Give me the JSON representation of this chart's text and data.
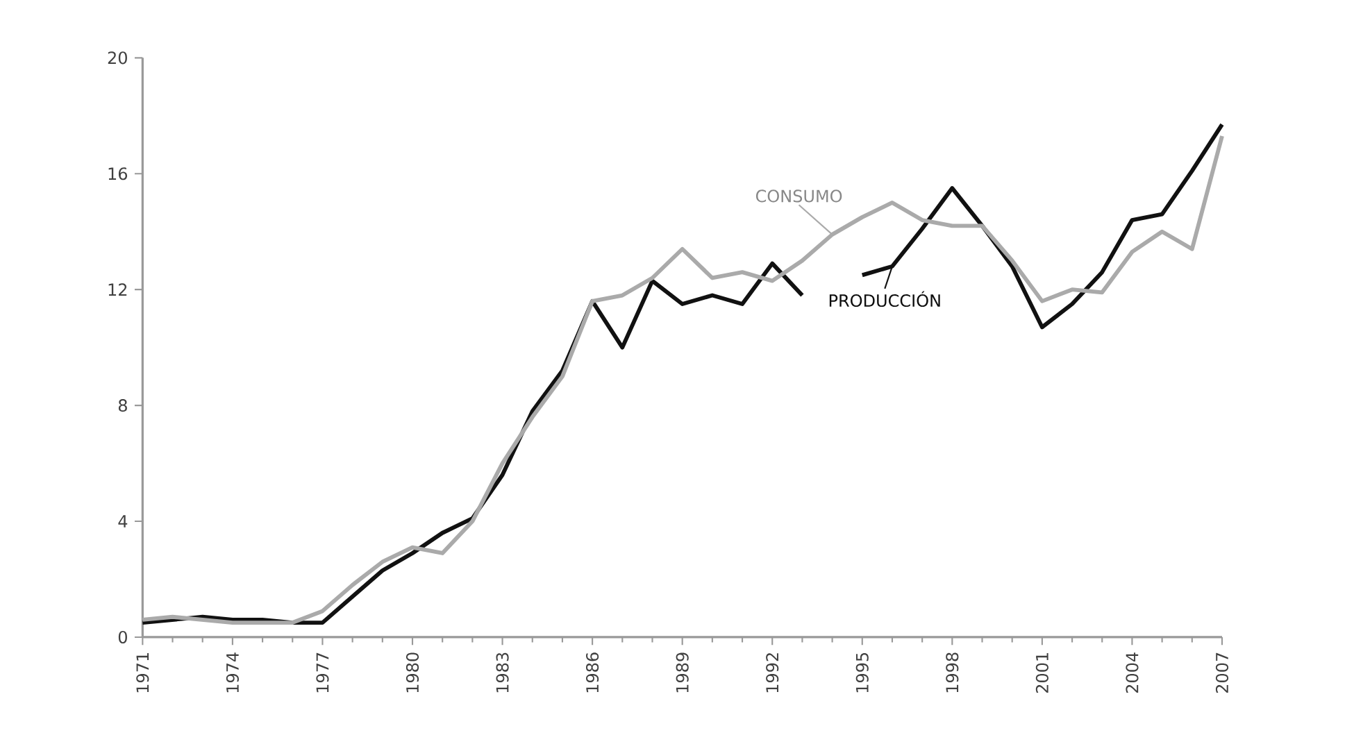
{
  "chart_data": {
    "type": "line",
    "x": [
      1971,
      1972,
      1973,
      1974,
      1975,
      1976,
      1977,
      1978,
      1979,
      1980,
      1981,
      1982,
      1983,
      1984,
      1985,
      1986,
      1987,
      1988,
      1989,
      1990,
      1991,
      1992,
      1993,
      1994,
      1995,
      1996,
      1997,
      1998,
      1999,
      2000,
      2001,
      2002,
      2003,
      2004,
      2005,
      2006,
      2007
    ],
    "series": [
      {
        "name": "PRODUCCIÓN",
        "color": "#111111",
        "values": [
          0.5,
          0.6,
          0.7,
          0.6,
          0.6,
          0.5,
          0.5,
          1.4,
          2.3,
          2.9,
          3.6,
          4.1,
          5.6,
          7.8,
          9.2,
          11.6,
          10.0,
          12.3,
          11.5,
          11.8,
          11.5,
          12.9,
          11.8,
          null,
          12.5,
          12.8,
          14.1,
          15.5,
          14.2,
          12.8,
          10.7,
          11.5,
          12.6,
          14.4,
          14.6,
          16.1,
          17.7
        ]
      },
      {
        "name": "CONSUMO",
        "color": "#aaaaaa",
        "values": [
          0.6,
          0.7,
          0.6,
          0.5,
          0.5,
          0.5,
          0.9,
          1.8,
          2.6,
          3.1,
          2.9,
          4.0,
          6.0,
          7.6,
          9.0,
          11.6,
          11.8,
          12.4,
          13.4,
          12.4,
          12.6,
          12.3,
          13.0,
          13.9,
          14.5,
          15.0,
          14.4,
          14.2,
          14.2,
          13.0,
          11.6,
          12.0,
          11.9,
          13.3,
          14.0,
          13.4,
          17.3
        ]
      }
    ],
    "xlim": [
      1971,
      2007
    ],
    "xticks": [
      1971,
      1974,
      1977,
      1980,
      1983,
      1986,
      1989,
      1992,
      1995,
      1998,
      2001,
      2004,
      2007
    ],
    "ylim": [
      0,
      20
    ],
    "yticks": [
      0,
      4,
      8,
      12,
      16,
      20
    ],
    "grid": false,
    "marker": "none",
    "line_style": "solid"
  }
}
